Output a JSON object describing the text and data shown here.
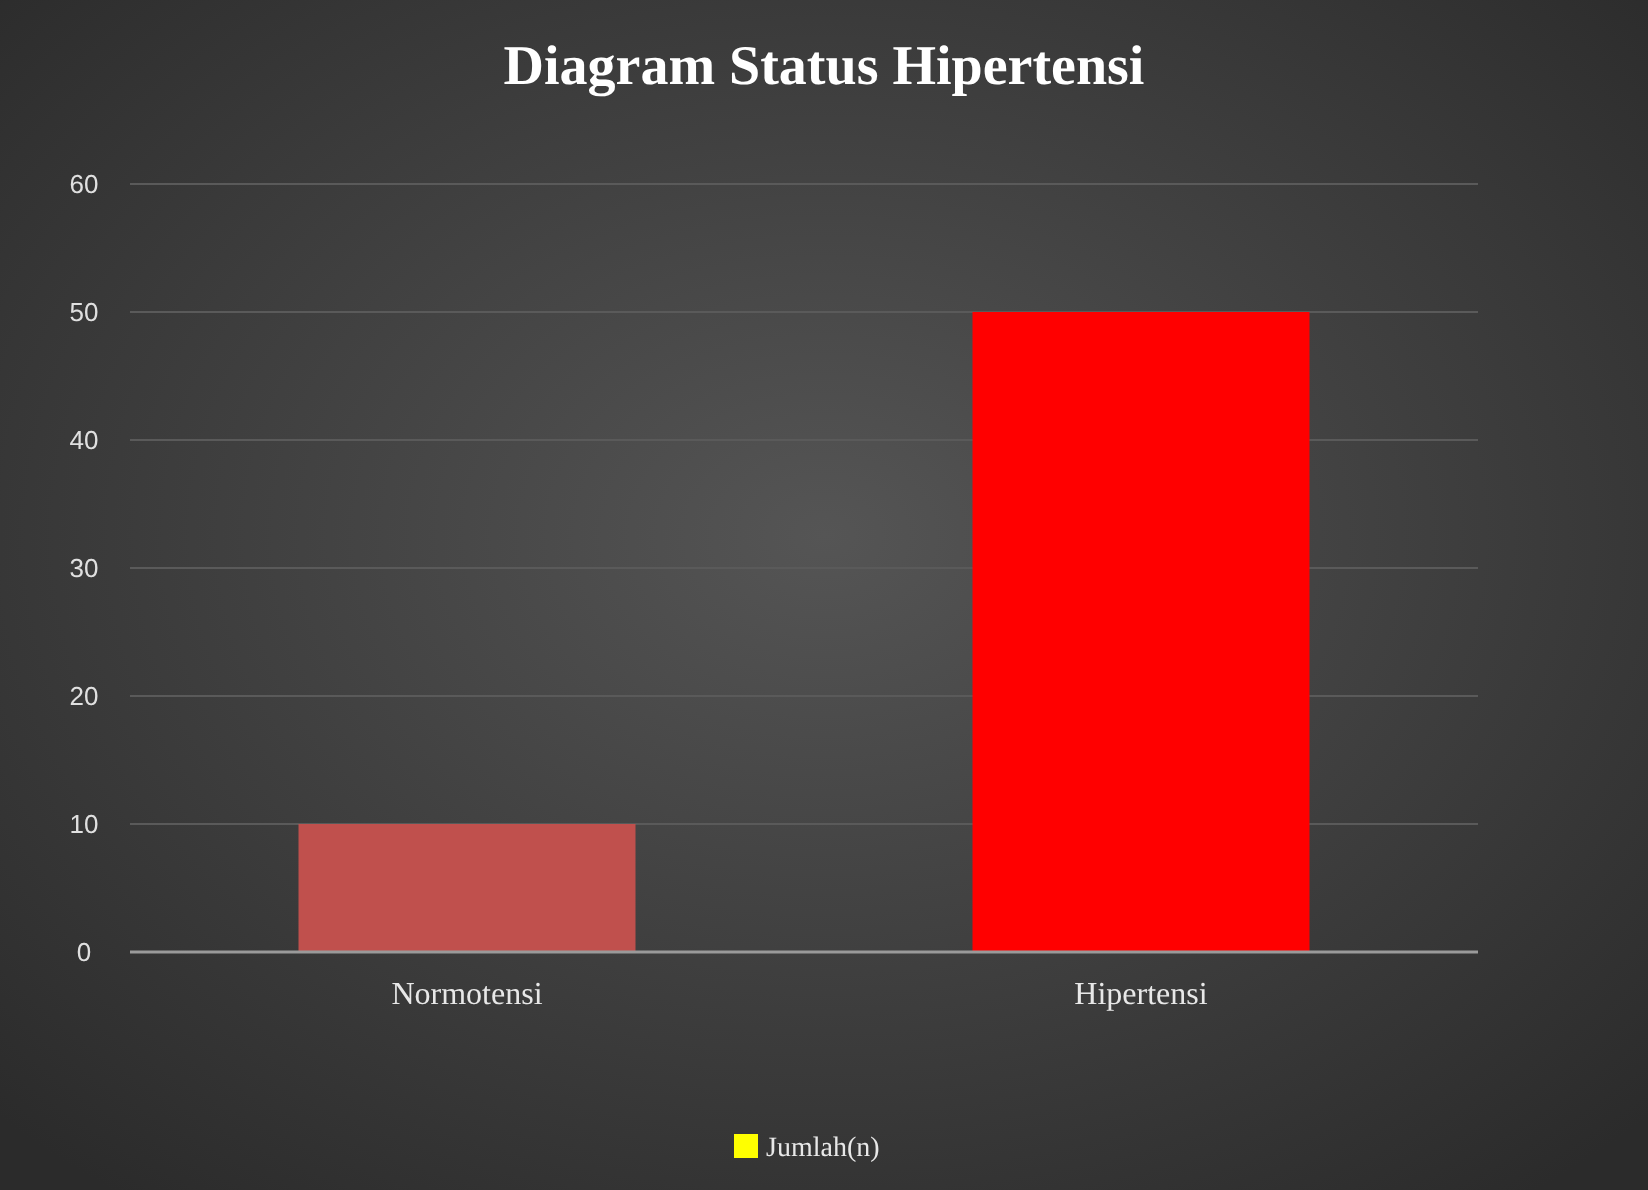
{
  "chart_data": {
    "type": "bar",
    "title": "Diagram Status Hipertensi",
    "categories": [
      "Normotensi",
      "Hipertensi"
    ],
    "series": [
      {
        "name": "Jumlah(n)",
        "color": "#ffff00",
        "colors": [
          "#c0504d",
          "#ff0000"
        ],
        "values": [
          10,
          50
        ]
      }
    ],
    "ylim": [
      0,
      60
    ],
    "yticks": [
      0,
      10,
      20,
      30,
      40,
      50,
      60
    ],
    "grid": "y",
    "legend": "bottom"
  }
}
